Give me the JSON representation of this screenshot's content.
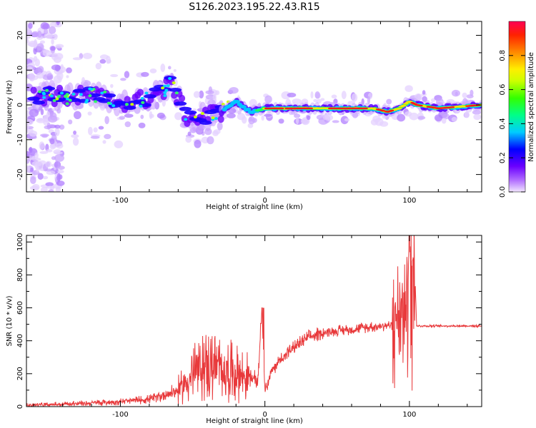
{
  "title": "S126.2023.195.22.43.R15",
  "chart_data": [
    {
      "type": "heatmap",
      "xlabel": "Height of straight line (km)",
      "ylabel": "Frequency (Hz)",
      "xlim": [
        -165,
        150
      ],
      "ylim": [
        -25,
        24
      ],
      "xticks": [
        -100,
        0,
        100
      ],
      "yticks": [
        -20,
        -10,
        0,
        10,
        20
      ],
      "colorbar": {
        "label": "Normalized spectral amplitude",
        "range": [
          0,
          1
        ],
        "ticks": [
          "0.0",
          "0.2",
          "0.4",
          "0.6",
          "0.8"
        ]
      },
      "ridge": [
        {
          "x": -165,
          "y": 2
        },
        {
          "x": -150,
          "y": 3
        },
        {
          "x": -135,
          "y": 2
        },
        {
          "x": -120,
          "y": 3
        },
        {
          "x": -105,
          "y": 1
        },
        {
          "x": -90,
          "y": 1
        },
        {
          "x": -80,
          "y": 2
        },
        {
          "x": -70,
          "y": 4
        },
        {
          "x": -65,
          "y": 6
        },
        {
          "x": -60,
          "y": 2
        },
        {
          "x": -55,
          "y": -3
        },
        {
          "x": -48,
          "y": -4
        },
        {
          "x": -40,
          "y": -3
        },
        {
          "x": -30,
          "y": -2
        },
        {
          "x": -20,
          "y": 1
        },
        {
          "x": -10,
          "y": -2
        },
        {
          "x": 0,
          "y": -1
        },
        {
          "x": 40,
          "y": -1
        },
        {
          "x": 60,
          "y": -1
        },
        {
          "x": 75,
          "y": -1
        },
        {
          "x": 85,
          "y": -2
        },
        {
          "x": 93,
          "y": -1
        },
        {
          "x": 100,
          "y": 1
        },
        {
          "x": 105,
          "y": 0
        },
        {
          "x": 120,
          "y": -1
        },
        {
          "x": 150,
          "y": 0
        }
      ]
    },
    {
      "type": "line",
      "xlabel": "Height of straight line (km)",
      "ylabel": "SNR (10 * v/v)",
      "xlim": [
        -165,
        150
      ],
      "ylim": [
        0,
        1040
      ],
      "xticks": [
        -100,
        0,
        100
      ],
      "yticks": [
        0,
        200,
        400,
        600,
        800,
        1000
      ],
      "series": [
        {
          "color": "#e8393b",
          "x": [
            -165,
            -140,
            -120,
            -100,
            -80,
            -70,
            -60,
            -55,
            -50,
            -45,
            -40,
            -35,
            -30,
            -25,
            -20,
            -15,
            -10,
            -5,
            -2,
            0,
            5,
            10,
            20,
            30,
            40,
            60,
            80,
            90,
            95,
            100,
            103,
            105,
            110,
            130,
            150
          ],
          "y": [
            8,
            15,
            22,
            30,
            45,
            70,
            100,
            140,
            200,
            230,
            250,
            240,
            230,
            220,
            200,
            190,
            180,
            150,
            600,
            100,
            220,
            280,
            360,
            420,
            450,
            470,
            490,
            500,
            560,
            980,
            1040,
            490,
            490,
            490,
            490
          ]
        }
      ]
    }
  ]
}
